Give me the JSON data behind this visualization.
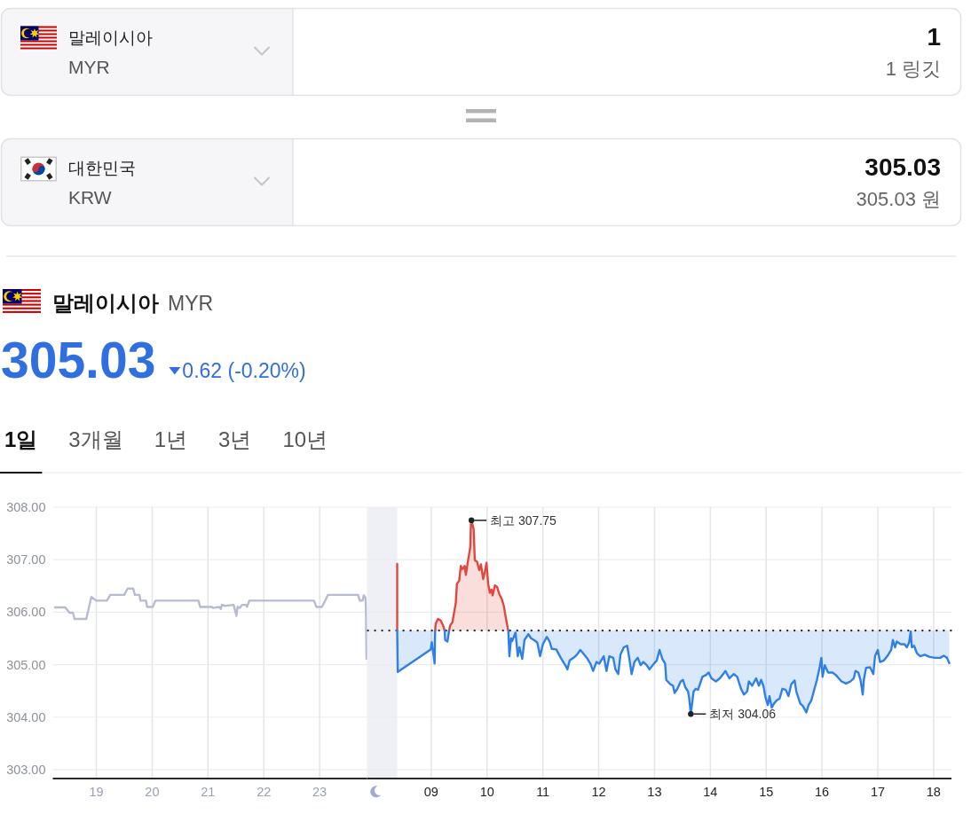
{
  "chart_data": [
    {
      "type": "other",
      "annotations": [
        "말레이시아",
        "MYR",
        "1",
        "1 링깃",
        "대한민국",
        "KRW",
        "305.03",
        "305.03 원"
      ]
    },
    {
      "type": "line",
      "title": "말레이시아",
      "subtitle": "MYR",
      "annotations": [
        "305.03",
        "0.62 (-0.20%)",
        "1일",
        "3개월",
        "1년",
        "3년",
        "10년"
      ],
      "series": [
        {
          "color": "#b7bbd2",
          "x": [
            18.26,
            18.44,
            18.52,
            18.58,
            18.61,
            18.82,
            18.91,
            19.0,
            19.19,
            19.25,
            19.5,
            19.56,
            19.66,
            19.69,
            19.77,
            19.79,
            19.89,
            19.91,
            20.01,
            20.06,
            20.83,
            20.86,
            21.07,
            21.09,
            21.2,
            21.23,
            21.25,
            21.31,
            21.46,
            21.51,
            21.53,
            21.57,
            21.61,
            21.68,
            21.7,
            21.74,
            22.9,
            22.94,
            23.04,
            23.1,
            23.15,
            23.69,
            23.72,
            23.77,
            23.79,
            23.82,
            23.83,
            23.84
          ],
          "values": [
            306.09,
            306.09,
            305.99,
            305.99,
            305.87,
            305.87,
            306.29,
            306.22,
            306.22,
            306.33,
            306.33,
            306.45,
            306.45,
            306.33,
            306.33,
            306.22,
            306.22,
            306.1,
            306.1,
            306.22,
            306.22,
            306.1,
            306.1,
            306.08,
            306.1,
            306.06,
            306.14,
            306.12,
            306.14,
            305.93,
            306.1,
            306.08,
            306.14,
            306.14,
            306.1,
            306.22,
            306.22,
            306.1,
            306.1,
            306.22,
            306.33,
            306.33,
            306.22,
            306.22,
            306.32,
            306.28,
            306.1,
            305.11
          ]
        }
      ],
      "xlim": [
        18.22,
        23.85
      ],
      "xticks": [
        19,
        20,
        21,
        22,
        23
      ],
      "ylim": [
        302.83,
        308
      ],
      "yticks": [
        {
          "value": 303,
          "label": "303.00"
        },
        {
          "value": 304,
          "label": "304.00"
        },
        {
          "value": 305,
          "label": "305.00"
        },
        {
          "value": 306,
          "label": "306.00"
        },
        {
          "value": 307,
          "label": "307.00"
        },
        {
          "value": 308,
          "label": "308.00"
        }
      ],
      "grid": true
    },
    {
      "type": "area",
      "series": [
        {
          "type": "line",
          "color": "#e2463e",
          "x": [
            8.39,
            8.39
          ],
          "values": [
            306.92,
            305.65
          ]
        },
        {
          "color": "#e2463e",
          "x": [
            9.07,
            9.08,
            9.12,
            9.17,
            9.21,
            9.24
          ],
          "values": [
            305.65,
            305.78,
            305.87,
            305.84,
            305.75,
            305.65
          ]
        },
        {
          "color": "#e2463e",
          "x": [
            9.32,
            9.34,
            9.38,
            9.44,
            9.46,
            9.5,
            9.53,
            9.56,
            9.6,
            9.62,
            9.66,
            9.7,
            9.71,
            9.72,
            9.76,
            9.78,
            9.82,
            9.86,
            9.89,
            9.93,
            9.96,
            9.99,
            10.02,
            10.05,
            10.08,
            10.1,
            10.14,
            10.18,
            10.22,
            10.26,
            10.3,
            10.34,
            10.37,
            10.38
          ],
          "values": [
            305.65,
            305.75,
            305.81,
            306.18,
            306.54,
            306.6,
            306.88,
            306.82,
            306.88,
            306.71,
            306.99,
            307.24,
            307.65,
            307.75,
            307.58,
            306.99,
            306.96,
            306.8,
            306.91,
            306.63,
            306.77,
            306.94,
            306.54,
            306.37,
            306.43,
            306.32,
            306.51,
            306.48,
            306.34,
            306.26,
            306.12,
            305.87,
            305.7,
            305.65
          ]
        },
        {
          "color": "#2f7fe8",
          "x": [
            8.39,
            8.4,
            8.99,
            9.01,
            9.06,
            9.07
          ],
          "values": [
            305.65,
            304.86,
            305.29,
            305.43,
            305.02,
            305.65
          ]
        },
        {
          "color": "#2f7fe8",
          "x": [
            9.24,
            9.25,
            9.29,
            9.32
          ],
          "values": [
            305.65,
            305.47,
            305.44,
            305.65
          ]
        },
        {
          "type": "line",
          "color": "#2f7fe8",
          "x": [
            10.38,
            10.4,
            10.43,
            10.45,
            10.51,
            10.55,
            10.58,
            10.63,
            10.67,
            10.74,
            10.79,
            10.84,
            10.9,
            10.95,
            11.0,
            11.07,
            11.12,
            11.16,
            11.24,
            11.32,
            11.4,
            11.44,
            11.48,
            11.55,
            11.61,
            11.67,
            11.74,
            11.8,
            11.85,
            11.9,
            11.96,
            12.01,
            12.09,
            12.14,
            12.19,
            12.26,
            12.3,
            12.35,
            12.39,
            12.45,
            12.51,
            12.55,
            12.59,
            12.64,
            12.7,
            12.75,
            12.8,
            12.86,
            12.91,
            12.99,
            13.04,
            13.09,
            13.14,
            13.19,
            13.21,
            13.28,
            13.33,
            13.36,
            13.41,
            13.47,
            13.51,
            13.55,
            13.6,
            13.62,
            13.65,
            13.68,
            13.7,
            13.74,
            13.78,
            13.83,
            13.86,
            13.92,
            13.97,
            14.02,
            14.1,
            14.17,
            14.23,
            14.27,
            14.34,
            14.42,
            14.48,
            14.55,
            14.6,
            14.66,
            14.69,
            14.75,
            14.82,
            14.87,
            14.91,
            14.95,
            14.99,
            15.03,
            15.06,
            15.1,
            15.14,
            15.19,
            15.24,
            15.29,
            15.35,
            15.4,
            15.45,
            15.51,
            15.54,
            15.61,
            15.66,
            15.72,
            15.76,
            15.81,
            15.86,
            15.91,
            15.96,
            15.99,
            16.01,
            16.05,
            16.11,
            16.19,
            16.25,
            16.3,
            16.35,
            16.43,
            16.51,
            16.57,
            16.6,
            16.65,
            16.69,
            16.73,
            16.75,
            16.79,
            16.86,
            16.92,
            16.95,
            17.0,
            17.04,
            17.11,
            17.17,
            17.24,
            17.27,
            17.31,
            17.34,
            17.41,
            17.48,
            17.52,
            17.56,
            17.59,
            17.61,
            17.65,
            17.7,
            17.76,
            17.84,
            17.92,
            18.02,
            18.12,
            18.18,
            18.24,
            18.28
          ],
          "values": [
            305.65,
            305.16,
            305.5,
            305.45,
            305.61,
            305.16,
            305.33,
            305.11,
            305.47,
            305.58,
            305.5,
            305.47,
            305.42,
            305.16,
            305.39,
            305.53,
            305.44,
            305.3,
            305.29,
            305.13,
            304.99,
            304.91,
            305.08,
            305.13,
            305.19,
            305.28,
            305.19,
            305.11,
            305.02,
            304.88,
            305.05,
            305.02,
            305.16,
            304.88,
            305.16,
            305.13,
            304.91,
            304.82,
            305.19,
            305.33,
            305.36,
            305.11,
            304.82,
            305.05,
            305.13,
            304.99,
            305.05,
            304.99,
            304.91,
            305.02,
            305.08,
            305.28,
            305.11,
            305.02,
            304.71,
            304.63,
            304.6,
            304.46,
            304.54,
            304.68,
            304.71,
            304.57,
            304.49,
            304.37,
            304.06,
            304.32,
            304.49,
            304.54,
            304.52,
            304.68,
            304.77,
            304.8,
            304.85,
            304.74,
            304.68,
            304.74,
            304.82,
            304.88,
            304.74,
            304.82,
            304.77,
            304.54,
            304.43,
            304.49,
            304.68,
            304.6,
            304.74,
            304.6,
            304.71,
            304.6,
            304.37,
            304.23,
            304.4,
            304.18,
            304.26,
            304.32,
            304.35,
            304.54,
            304.52,
            304.4,
            304.63,
            304.7,
            304.49,
            304.26,
            304.21,
            304.09,
            304.23,
            304.32,
            304.52,
            304.71,
            304.96,
            305.13,
            304.77,
            304.99,
            304.85,
            304.85,
            304.8,
            304.74,
            304.68,
            304.64,
            304.68,
            304.74,
            304.88,
            304.85,
            304.71,
            304.43,
            304.71,
            304.94,
            304.95,
            304.82,
            305.16,
            305.28,
            305.05,
            305.08,
            305.16,
            305.28,
            305.47,
            305.33,
            305.44,
            305.39,
            305.39,
            305.33,
            305.42,
            305.63,
            305.33,
            305.36,
            305.22,
            305.16,
            305.19,
            305.15,
            305.13,
            305.13,
            305.17,
            305.13,
            305.03
          ],
          "lower": [
            305.65,
            305.16,
            305.5,
            305.45,
            305.61,
            305.16,
            305.33,
            305.11,
            305.47,
            305.58,
            305.5,
            305.47,
            305.42,
            305.16,
            305.39,
            305.53,
            305.44,
            305.3,
            305.29,
            305.13,
            304.99,
            304.91,
            305.08,
            305.13,
            305.19,
            305.28,
            305.19,
            305.11,
            305.02,
            304.88,
            305.05,
            305.02,
            305.16,
            304.88,
            305.16,
            305.13,
            304.91,
            304.82,
            305.19,
            305.33,
            305.36,
            305.11,
            304.82,
            305.05,
            305.13,
            304.99,
            305.05,
            304.99,
            304.91,
            305.02,
            305.08,
            305.28,
            305.11,
            305.02,
            304.71,
            304.63,
            304.6,
            304.46,
            304.54,
            304.68,
            304.71,
            304.57,
            304.49,
            304.37,
            304.06,
            304.32,
            304.49,
            304.54,
            304.52,
            304.68,
            304.77,
            304.8,
            304.85,
            304.74,
            304.68,
            304.74,
            304.82,
            304.88,
            304.74,
            304.82,
            304.77,
            304.54,
            304.43,
            304.49,
            304.68,
            304.6,
            304.74,
            304.6,
            304.71,
            304.6,
            304.37,
            304.23,
            304.4,
            304.18,
            304.26,
            304.32,
            304.35,
            304.54,
            304.52,
            304.4,
            304.63,
            304.7,
            304.49,
            304.26,
            304.21,
            304.09,
            304.23,
            304.32,
            304.52,
            304.71,
            304.96,
            305.13,
            304.77,
            304.99,
            304.85,
            304.85,
            304.8,
            304.74,
            304.68,
            304.64,
            304.68,
            304.74,
            304.88,
            304.85,
            304.71,
            304.43,
            304.71,
            304.94,
            304.95,
            304.82,
            305.16,
            305.28,
            305.05,
            305.08,
            305.16,
            305.28,
            305.47,
            305.33,
            305.44,
            305.39,
            305.39,
            305.33,
            305.42,
            305.63,
            305.33,
            305.36,
            305.22,
            305.16,
            305.19,
            305.15,
            305.13,
            305.13,
            305.17,
            305.13,
            305.03
          ],
          "upper": [
            305.65,
            305.65,
            305.65,
            305.65,
            305.65,
            305.65,
            305.65,
            305.65,
            305.65,
            305.65,
            305.65,
            305.65,
            305.65,
            305.65,
            305.65,
            305.65,
            305.65,
            305.65,
            305.65,
            305.65,
            305.65,
            305.65,
            305.65,
            305.65,
            305.65,
            305.65,
            305.65,
            305.65,
            305.65,
            305.65,
            305.65,
            305.65,
            305.65,
            305.65,
            305.65,
            305.65,
            305.65,
            305.65,
            305.65,
            305.65,
            305.65,
            305.65,
            305.65,
            305.65,
            305.65,
            305.65,
            305.65,
            305.65,
            305.65,
            305.65,
            305.65,
            305.65,
            305.65,
            305.65,
            305.65,
            305.65,
            305.65,
            305.65,
            305.65,
            305.65,
            305.65,
            305.65,
            305.65,
            305.65,
            305.65,
            305.65,
            305.65,
            305.65,
            305.65,
            305.65,
            305.65,
            305.65,
            305.65,
            305.65,
            305.65,
            305.65,
            305.65,
            305.65,
            305.65,
            305.65,
            305.65,
            305.65,
            305.65,
            305.65,
            305.65,
            305.65,
            305.65,
            305.65,
            305.65,
            305.65,
            305.65,
            305.65,
            305.65,
            305.65,
            305.65,
            305.65,
            305.65,
            305.65,
            305.65,
            305.65,
            305.65,
            305.65,
            305.65,
            305.65,
            305.65,
            305.65,
            305.65,
            305.65,
            305.65,
            305.65,
            305.65,
            305.65,
            305.65,
            305.65,
            305.65,
            305.65,
            305.65,
            305.65,
            305.65,
            305.65,
            305.65,
            305.65,
            305.65,
            305.65,
            305.65,
            305.65,
            305.65,
            305.65,
            305.65,
            305.65,
            305.65,
            305.65,
            305.65,
            305.65,
            305.65,
            305.65,
            305.65,
            305.65,
            305.65,
            305.65,
            305.65,
            305.65,
            305.65,
            305.65,
            305.65,
            305.65,
            305.65,
            305.65,
            305.65,
            305.65,
            305.65,
            305.65,
            305.65,
            305.65,
            305.65
          ]
        }
      ],
      "xlim": [
        7.85,
        18.32
      ],
      "xticks": [
        {
          "value": 9,
          "label": "09"
        },
        10,
        11,
        12,
        13,
        14,
        15,
        16,
        17,
        18
      ],
      "ylim": [
        302.83,
        308
      ],
      "yticks": [
        303,
        304,
        305,
        306,
        307,
        308
      ],
      "grid": true,
      "tick_labels": "x",
      "ref_lines": [
        {
          "axis": "y",
          "value": 305.65,
          "line_style": "dotted",
          "color": "#222222"
        }
      ],
      "bands": [
        {
          "axis": "x",
          "from": 7.85,
          "to": 8.39,
          "color": "#eff0f5"
        }
      ],
      "annotations": [
        {
          "text": "최고 307.75",
          "x": 9.72,
          "y": 307.75
        },
        {
          "text": "최저 304.06",
          "x": 13.65,
          "y": 304.06
        }
      ]
    }
  ]
}
